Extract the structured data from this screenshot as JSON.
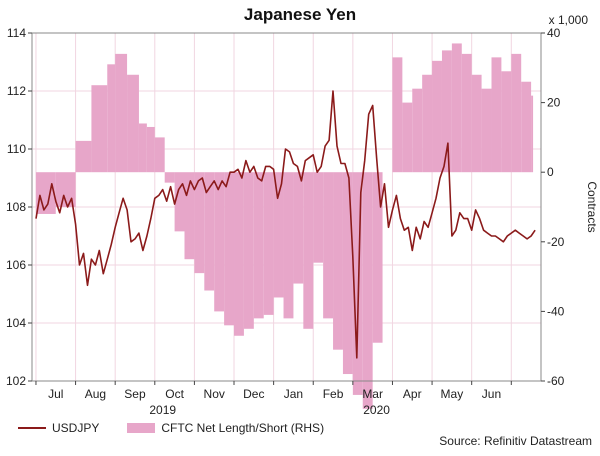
{
  "chart_data": {
    "type": "line",
    "title": "Japanese Yen",
    "right_axis_unit": "x 1,000",
    "right_axis_label": "Contracts",
    "source": "Source: Refinitiv Datastream",
    "x_tick_labels": [
      "Jul",
      "Aug",
      "Sep",
      "Oct",
      "Nov",
      "Dec",
      "Jan",
      "Feb",
      "Mar",
      "Apr",
      "May",
      "Jun"
    ],
    "year_labels": [
      "2019",
      "2020"
    ],
    "left_axis": {
      "ylim": [
        102,
        114
      ],
      "ticks": [
        102,
        104,
        106,
        108,
        110,
        112,
        114
      ]
    },
    "right_axis": {
      "ylim": [
        -60,
        40
      ],
      "ticks": [
        -60,
        -40,
        -20,
        0,
        20,
        40
      ]
    },
    "colors": {
      "usdjpy": "#8b1a1a",
      "cftc": "#e7a6c9",
      "grid": "#f1d6e1"
    },
    "series": [
      {
        "name": "USDJPY",
        "axis": "left",
        "x": [
          0,
          0.1,
          0.2,
          0.3,
          0.4,
          0.5,
          0.6,
          0.7,
          0.8,
          0.9,
          1.0,
          1.1,
          1.2,
          1.3,
          1.4,
          1.5,
          1.6,
          1.7,
          1.8,
          1.9,
          2.0,
          2.1,
          2.2,
          2.3,
          2.4,
          2.5,
          2.6,
          2.7,
          2.8,
          2.9,
          3.0,
          3.1,
          3.2,
          3.3,
          3.4,
          3.5,
          3.6,
          3.7,
          3.8,
          3.9,
          4.0,
          4.1,
          4.2,
          4.3,
          4.4,
          4.5,
          4.6,
          4.7,
          4.8,
          4.9,
          5.0,
          5.1,
          5.2,
          5.3,
          5.4,
          5.5,
          5.6,
          5.7,
          5.8,
          5.9,
          6.0,
          6.1,
          6.2,
          6.3,
          6.4,
          6.5,
          6.6,
          6.7,
          6.8,
          6.9,
          7.0,
          7.1,
          7.2,
          7.3,
          7.4,
          7.5,
          7.6,
          7.7,
          7.8,
          7.9,
          8.0,
          8.1,
          8.2,
          8.3,
          8.4,
          8.5,
          8.6,
          8.7,
          8.8,
          8.9,
          9.0,
          9.1,
          9.2,
          9.3,
          9.4,
          9.5,
          9.6,
          9.7,
          9.8,
          9.9,
          10.0,
          10.1,
          10.2,
          10.3,
          10.4,
          10.5,
          10.6,
          10.7,
          10.8,
          10.9,
          11.0,
          11.1,
          11.2,
          11.3,
          11.4,
          11.5,
          11.6,
          11.7,
          11.8,
          11.9,
          12.0,
          12.1,
          12.2,
          12.3,
          12.4,
          12.5,
          12.6
        ],
        "values": [
          107.6,
          108.4,
          107.9,
          108.1,
          108.8,
          108.2,
          107.8,
          108.4,
          108.0,
          108.3,
          107.4,
          106.0,
          106.4,
          105.3,
          106.2,
          106.0,
          106.5,
          105.7,
          106.2,
          106.7,
          107.3,
          107.8,
          108.3,
          107.9,
          106.8,
          106.9,
          107.1,
          106.5,
          107.0,
          107.6,
          108.3,
          108.4,
          108.6,
          108.2,
          108.7,
          108.1,
          108.6,
          108.8,
          108.4,
          108.9,
          108.6,
          108.9,
          109.0,
          108.5,
          108.7,
          108.9,
          108.6,
          108.9,
          108.7,
          109.2,
          109.2,
          109.3,
          109.0,
          109.6,
          109.2,
          109.4,
          109.0,
          108.9,
          109.4,
          109.4,
          109.3,
          108.3,
          108.8,
          110.0,
          109.9,
          109.5,
          109.4,
          108.9,
          109.6,
          109.7,
          109.8,
          109.2,
          109.4,
          110.1,
          110.3,
          112.0,
          110.1,
          109.5,
          109.5,
          109.0,
          106.3,
          102.8,
          108.5,
          109.6,
          111.2,
          111.5,
          109.7,
          108.0,
          108.8,
          107.3,
          107.9,
          108.4,
          107.6,
          107.2,
          107.3,
          106.5,
          107.3,
          106.9,
          107.5,
          107.3,
          107.8,
          108.3,
          109.0,
          109.4,
          110.2,
          107.0,
          107.2,
          107.8,
          107.6,
          107.6,
          107.2,
          107.9,
          107.6,
          107.2,
          107.1,
          107.0,
          107.0,
          106.9,
          106.8,
          107.0,
          107.1,
          107.2,
          107.1,
          107.0,
          106.9,
          107.0,
          107.2
        ],
        "note_x": "x in months since start of Jul 2019 (tick labels shown at each month)"
      },
      {
        "name": "CFTC Net Length/Short (RHS)",
        "axis": "right",
        "x": [
          0,
          0.5,
          1.0,
          1.4,
          1.8,
          2.0,
          2.3,
          2.6,
          2.8,
          3.0,
          3.25,
          3.5,
          3.75,
          4.0,
          4.25,
          4.5,
          4.75,
          5.0,
          5.25,
          5.5,
          5.75,
          6.0,
          6.25,
          6.5,
          6.75,
          7.0,
          7.25,
          7.5,
          7.75,
          8.0,
          8.25,
          8.5,
          8.75,
          9.0,
          9.25,
          9.5,
          9.75,
          10.0,
          10.25,
          10.5,
          10.75,
          11.0,
          11.25,
          11.5,
          11.75,
          12.0,
          12.25,
          12.5
        ],
        "values": [
          -12,
          -10,
          9,
          25,
          31,
          34,
          28,
          14,
          13,
          10,
          -3,
          -17,
          -25,
          -29,
          -34,
          -40,
          -44,
          -47,
          -45,
          -42,
          -41,
          -36,
          -42,
          -32,
          -45,
          -26,
          -42,
          -51,
          -58,
          -64,
          -68,
          -49,
          0,
          33,
          20,
          24,
          28,
          32,
          35,
          37,
          34,
          28,
          24,
          33,
          29,
          34,
          26,
          22
        ],
        "note_x": "x in months since start of Jul 2019; weekly step area"
      }
    ]
  }
}
